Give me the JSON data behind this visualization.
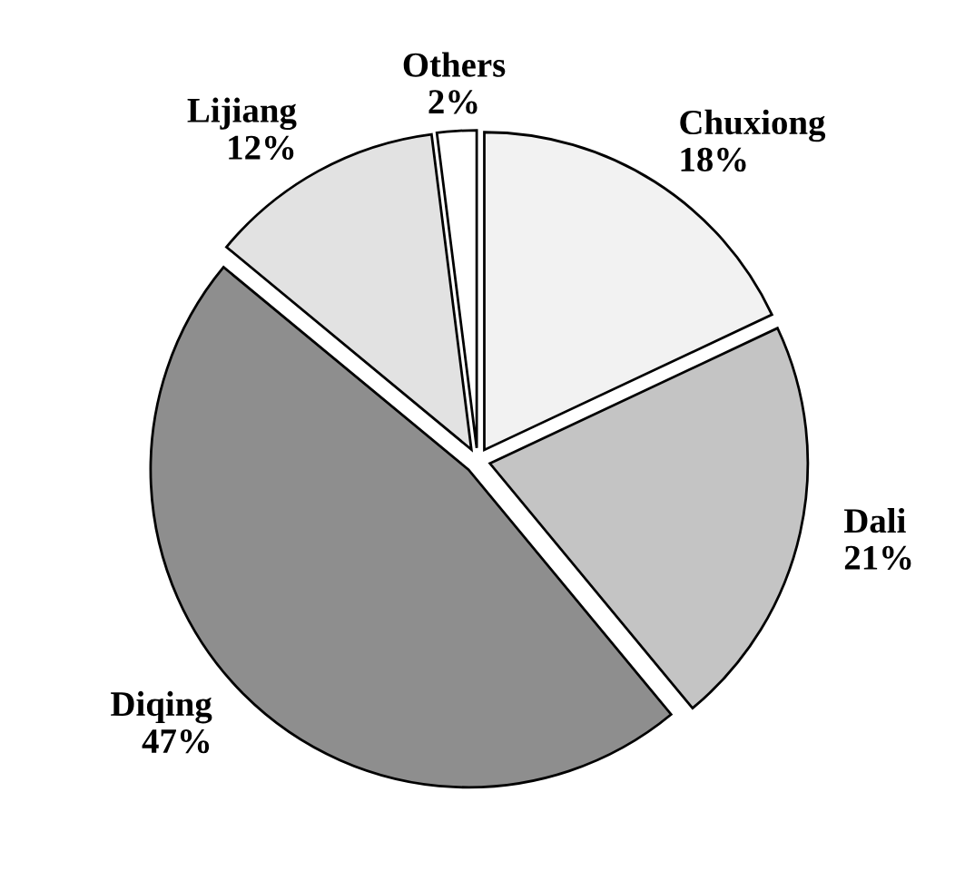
{
  "chart_data": {
    "type": "pie",
    "categories": [
      "Chuxiong",
      "Dali",
      "Diqing",
      "Lijiang",
      "Others"
    ],
    "values": [
      18,
      21,
      47,
      12,
      2
    ],
    "value_labels": [
      "18%",
      "21%",
      "47%",
      "12%",
      "2%"
    ],
    "colors": [
      "#f2f2f2",
      "#c4c4c4",
      "#8e8e8e",
      "#e2e2e2",
      "#ffffff"
    ],
    "legend": false
  }
}
